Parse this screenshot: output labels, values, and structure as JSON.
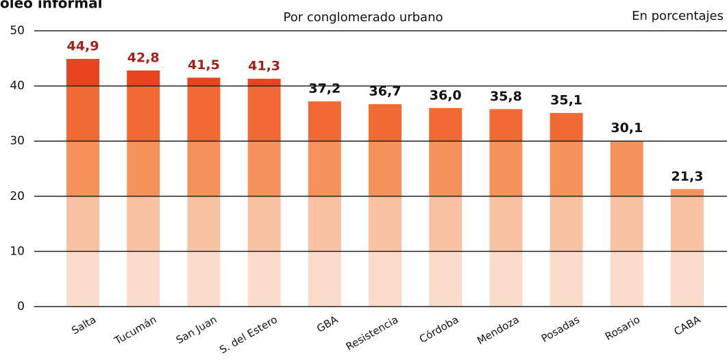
{
  "chart_data": {
    "type": "bar",
    "title": "oleo informal",
    "subtitle": "Por conglomerado urbano",
    "note": "En porcentajes",
    "categories": [
      "Salta",
      "Tucumán",
      "San Juan",
      "S. del Estero",
      "GBA",
      "Resistencia",
      "Córdoba",
      "Mendoza",
      "Posadas",
      "Rosario",
      "CABA"
    ],
    "values": [
      44.9,
      42.8,
      41.5,
      41.3,
      37.2,
      36.7,
      36.0,
      35.8,
      35.1,
      30.1,
      21.3
    ],
    "value_labels": [
      "44,9",
      "42,8",
      "41,5",
      "41,3",
      "37,2",
      "36,7",
      "36,0",
      "35,8",
      "35,1",
      "30,1",
      "21,3"
    ],
    "label_colors": [
      "#a3201a",
      "#a3201a",
      "#a3201a",
      "#a3201a",
      "#111111",
      "#111111",
      "#111111",
      "#111111",
      "#111111",
      "#111111",
      "#111111"
    ],
    "band_colors": [
      "#fbdccb",
      "#f9c3a3",
      "#f5925c",
      "#f16a34",
      "#e8441f"
    ],
    "ylim": [
      0,
      50
    ],
    "yticks": [
      0,
      10,
      20,
      30,
      40,
      50
    ],
    "grid": true
  }
}
